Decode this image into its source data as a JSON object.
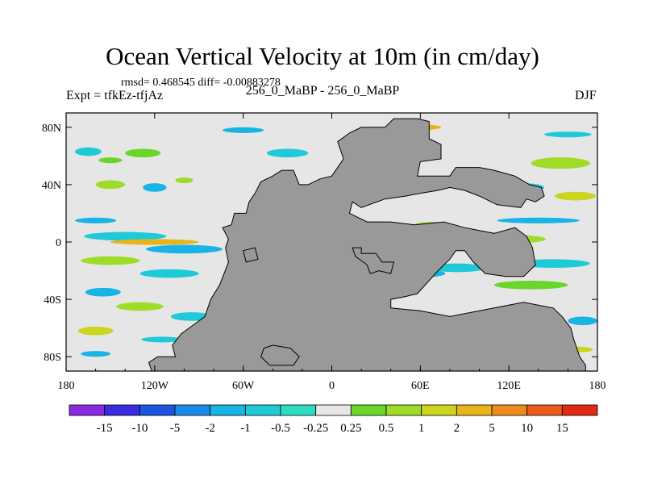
{
  "chart_data": {
    "type": "heatmap",
    "title": "Ocean Vertical Velocity at 10m (in cm/day)",
    "stats_text": "rmsd= 0.468545  diff= -0.00883278",
    "left_label": "Expt = tfkEz-tfjAz",
    "center_label": "256_0_MaBP - 256_0_MaBP",
    "right_label": "DJF",
    "x_ticks": [
      "180",
      "120W",
      "60W",
      "0",
      "60E",
      "120E",
      "180"
    ],
    "x_tick_values": [
      -180,
      -120,
      -60,
      0,
      60,
      120,
      180
    ],
    "y_ticks": [
      "80N",
      "40N",
      "0",
      "40S",
      "80S"
    ],
    "y_tick_values": [
      80,
      40,
      0,
      -40,
      -80
    ],
    "xlim": [
      -180,
      180
    ],
    "ylim": [
      -90,
      90
    ],
    "colorbar": {
      "labels": [
        "-15",
        "-10",
        "-5",
        "-2",
        "-1",
        "-0.5",
        "-0.25",
        "0.25",
        "0.5",
        "1",
        "2",
        "5",
        "10",
        "15"
      ],
      "colors": [
        "#8a2be2",
        "#3a2ce0",
        "#1a55e0",
        "#1a8ce8",
        "#18b4e6",
        "#1fcad8",
        "#2ddcc0",
        "#e6e6e6",
        "#6ad62a",
        "#9fdc28",
        "#ccd41e",
        "#e8b41a",
        "#ec8a1c",
        "#ea5a18",
        "#e02a12"
      ]
    },
    "land_color": "#999999",
    "field_blobs": [
      {
        "lon": -165,
        "lat": 63,
        "rx": 9,
        "ry": 3,
        "level": 5
      },
      {
        "lon": -150,
        "lat": 57,
        "rx": 8,
        "ry": 2,
        "level": 8
      },
      {
        "lon": -128,
        "lat": 62,
        "rx": 12,
        "ry": 3,
        "level": 8
      },
      {
        "lon": -150,
        "lat": 40,
        "rx": 10,
        "ry": 3,
        "level": 9
      },
      {
        "lon": -120,
        "lat": 38,
        "rx": 8,
        "ry": 3,
        "level": 4
      },
      {
        "lon": -100,
        "lat": 43,
        "rx": 6,
        "ry": 2,
        "level": 9
      },
      {
        "lon": -160,
        "lat": 15,
        "rx": 14,
        "ry": 2,
        "level": 4
      },
      {
        "lon": -140,
        "lat": 4,
        "rx": 28,
        "ry": 3,
        "level": 5
      },
      {
        "lon": -120,
        "lat": 0,
        "rx": 30,
        "ry": 2,
        "level": 11
      },
      {
        "lon": -100,
        "lat": -5,
        "rx": 26,
        "ry": 3,
        "level": 4
      },
      {
        "lon": -150,
        "lat": -13,
        "rx": 20,
        "ry": 3,
        "level": 9
      },
      {
        "lon": -110,
        "lat": -22,
        "rx": 20,
        "ry": 3,
        "level": 5
      },
      {
        "lon": -155,
        "lat": -35,
        "rx": 12,
        "ry": 3,
        "level": 4
      },
      {
        "lon": -130,
        "lat": -45,
        "rx": 16,
        "ry": 3,
        "level": 9
      },
      {
        "lon": -95,
        "lat": -52,
        "rx": 14,
        "ry": 3,
        "level": 5
      },
      {
        "lon": -160,
        "lat": -62,
        "rx": 12,
        "ry": 3,
        "level": 10
      },
      {
        "lon": -115,
        "lat": -68,
        "rx": 14,
        "ry": 2,
        "level": 5
      },
      {
        "lon": -160,
        "lat": -78,
        "rx": 10,
        "ry": 2,
        "level": 4
      },
      {
        "lon": -80,
        "lat": -82,
        "rx": 8,
        "ry": 2,
        "level": 9
      },
      {
        "lon": -30,
        "lat": 62,
        "rx": 14,
        "ry": 3,
        "level": 5
      },
      {
        "lon": -25,
        "lat": 35,
        "rx": 10,
        "ry": 3,
        "level": 9
      },
      {
        "lon": -40,
        "lat": 10,
        "rx": 10,
        "ry": 2,
        "level": 4
      },
      {
        "lon": 20,
        "lat": 4,
        "rx": 12,
        "ry": 3,
        "level": 10
      },
      {
        "lon": 28,
        "lat": -3,
        "rx": 6,
        "ry": 3,
        "level": 14
      },
      {
        "lon": 45,
        "lat": 10,
        "rx": 18,
        "ry": 3,
        "level": 9
      },
      {
        "lon": 60,
        "lat": -3,
        "rx": 20,
        "ry": 3,
        "level": 5
      },
      {
        "lon": 68,
        "lat": 12,
        "rx": 12,
        "ry": 2,
        "level": 9
      },
      {
        "lon": 55,
        "lat": -22,
        "rx": 22,
        "ry": 3,
        "level": 4
      },
      {
        "lon": 100,
        "lat": -8,
        "rx": 8,
        "ry": 4,
        "level": 13
      },
      {
        "lon": 85,
        "lat": -18,
        "rx": 20,
        "ry": 3,
        "level": 5
      },
      {
        "lon": 120,
        "lat": 2,
        "rx": 25,
        "ry": 3,
        "level": 9
      },
      {
        "lon": 140,
        "lat": 15,
        "rx": 28,
        "ry": 2,
        "level": 4
      },
      {
        "lon": 150,
        "lat": -15,
        "rx": 25,
        "ry": 3,
        "level": 5
      },
      {
        "lon": 135,
        "lat": -30,
        "rx": 25,
        "ry": 3,
        "level": 8
      },
      {
        "lon": 155,
        "lat": 55,
        "rx": 20,
        "ry": 4,
        "level": 9
      },
      {
        "lon": 130,
        "lat": 38,
        "rx": 14,
        "ry": 3,
        "level": 5
      },
      {
        "lon": 165,
        "lat": 32,
        "rx": 14,
        "ry": 3,
        "level": 10
      },
      {
        "lon": 160,
        "lat": 75,
        "rx": 16,
        "ry": 2,
        "level": 5
      },
      {
        "lon": 60,
        "lat": 80,
        "rx": 14,
        "ry": 2,
        "level": 11
      },
      {
        "lon": -60,
        "lat": 78,
        "rx": 14,
        "ry": 2,
        "level": 4
      },
      {
        "lon": 170,
        "lat": -55,
        "rx": 10,
        "ry": 3,
        "level": 4
      },
      {
        "lon": 165,
        "lat": -75,
        "rx": 12,
        "ry": 2,
        "level": 10
      }
    ],
    "land_polygons": [
      [
        [
          -40,
          46
        ],
        [
          -34,
          50
        ],
        [
          -26,
          50
        ],
        [
          -22,
          40
        ],
        [
          -16,
          40
        ],
        [
          -8,
          44
        ],
        [
          0,
          46
        ],
        [
          8,
          58
        ],
        [
          4,
          70
        ],
        [
          12,
          76
        ],
        [
          20,
          80
        ],
        [
          36,
          80
        ],
        [
          42,
          86
        ],
        [
          58,
          86
        ],
        [
          66,
          84
        ],
        [
          66,
          72
        ],
        [
          74,
          68
        ],
        [
          74,
          58
        ],
        [
          60,
          56
        ],
        [
          58,
          46
        ],
        [
          80,
          46
        ],
        [
          84,
          52
        ],
        [
          100,
          52
        ],
        [
          110,
          50
        ],
        [
          124,
          46
        ],
        [
          134,
          40
        ],
        [
          142,
          38
        ],
        [
          144,
          32
        ],
        [
          138,
          28
        ],
        [
          132,
          30
        ],
        [
          128,
          24
        ],
        [
          112,
          26
        ],
        [
          100,
          32
        ],
        [
          90,
          36
        ],
        [
          80,
          38
        ],
        [
          72,
          36
        ],
        [
          60,
          34
        ],
        [
          50,
          32
        ],
        [
          36,
          30
        ],
        [
          20,
          24
        ],
        [
          14,
          28
        ],
        [
          12,
          20
        ],
        [
          24,
          14
        ],
        [
          40,
          14
        ],
        [
          56,
          12
        ],
        [
          76,
          14
        ],
        [
          90,
          10
        ],
        [
          110,
          6
        ],
        [
          124,
          10
        ],
        [
          132,
          4
        ],
        [
          136,
          -4
        ],
        [
          138,
          -16
        ],
        [
          130,
          -24
        ],
        [
          118,
          -24
        ],
        [
          104,
          -22
        ],
        [
          96,
          -14
        ],
        [
          90,
          -6
        ],
        [
          84,
          -6
        ],
        [
          80,
          -12
        ],
        [
          72,
          -20
        ],
        [
          58,
          -36
        ],
        [
          50,
          -38
        ],
        [
          40,
          -40
        ],
        [
          40,
          -46
        ],
        [
          60,
          -48
        ],
        [
          80,
          -52
        ],
        [
          110,
          -46
        ],
        [
          130,
          -42
        ],
        [
          150,
          -46
        ],
        [
          156,
          -52
        ],
        [
          162,
          -60
        ],
        [
          164,
          -68
        ],
        [
          168,
          -80
        ],
        [
          172,
          -86
        ],
        [
          172,
          -90
        ],
        [
          -122,
          -90
        ],
        [
          -124,
          -84
        ],
        [
          -118,
          -80
        ],
        [
          -106,
          -80
        ],
        [
          -108,
          -72
        ],
        [
          -102,
          -64
        ],
        [
          -94,
          -58
        ],
        [
          -86,
          -52
        ],
        [
          -82,
          -40
        ],
        [
          -76,
          -30
        ],
        [
          -70,
          -14
        ],
        [
          -72,
          -4
        ],
        [
          -70,
          2
        ],
        [
          -74,
          10
        ],
        [
          -68,
          12
        ],
        [
          -66,
          20
        ],
        [
          -58,
          20
        ],
        [
          -56,
          28
        ],
        [
          -52,
          34
        ],
        [
          -48,
          42
        ]
      ],
      [
        [
          14,
          -4
        ],
        [
          20,
          -4
        ],
        [
          20,
          -8
        ],
        [
          30,
          -8
        ],
        [
          34,
          -14
        ],
        [
          42,
          -14
        ],
        [
          40,
          -22
        ],
        [
          32,
          -20
        ],
        [
          26,
          -22
        ],
        [
          24,
          -16
        ],
        [
          16,
          -10
        ]
      ],
      [
        [
          -46,
          -74
        ],
        [
          -40,
          -72
        ],
        [
          -28,
          -74
        ],
        [
          -22,
          -80
        ],
        [
          -26,
          -86
        ],
        [
          -42,
          -86
        ],
        [
          -48,
          -80
        ]
      ],
      [
        [
          -60,
          -6
        ],
        [
          -52,
          -4
        ],
        [
          -50,
          -12
        ],
        [
          -58,
          -14
        ]
      ]
    ]
  }
}
